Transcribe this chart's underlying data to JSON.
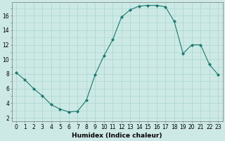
{
  "x": [
    0,
    1,
    2,
    3,
    4,
    5,
    6,
    7,
    8,
    9,
    10,
    11,
    12,
    13,
    14,
    15,
    16,
    17,
    18,
    19,
    20,
    21,
    22,
    23
  ],
  "y": [
    8.2,
    7.2,
    6.0,
    5.0,
    3.8,
    3.2,
    2.8,
    2.9,
    4.4,
    7.9,
    10.5,
    12.7,
    15.8,
    16.8,
    17.3,
    17.4,
    17.4,
    17.2,
    15.2,
    10.8,
    12.0,
    12.0,
    9.3,
    7.9
  ],
  "line_color": "#1a7a6e",
  "marker": "D",
  "marker_size": 2.0,
  "bg_color": "#cce9e5",
  "grid_color": "#aad4ce",
  "xlabel": "Humidex (Indice chaleur)",
  "xlabel_fontsize": 6.5,
  "yticks": [
    2,
    4,
    6,
    8,
    10,
    12,
    14,
    16
  ],
  "xticks": [
    0,
    1,
    2,
    3,
    4,
    5,
    6,
    7,
    8,
    9,
    10,
    11,
    12,
    13,
    14,
    15,
    16,
    17,
    18,
    19,
    20,
    21,
    22,
    23
  ],
  "ylim": [
    1.5,
    17.8
  ],
  "xlim": [
    -0.5,
    23.5
  ],
  "tick_fontsize": 5.5
}
